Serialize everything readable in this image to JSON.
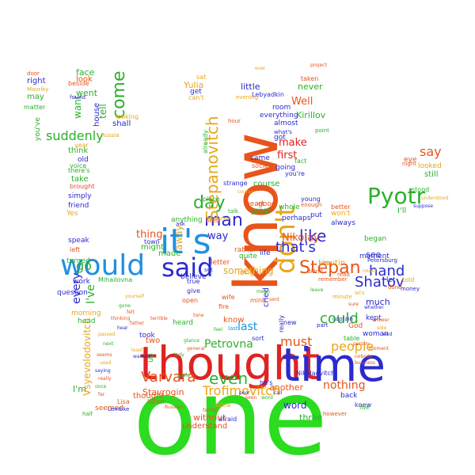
{
  "words": [
    {
      "text": "one",
      "color": "#2bdc1f",
      "orient": "h"
    },
    {
      "text": "know",
      "color": "#e8541a",
      "orient": "v"
    },
    {
      "text": "thought",
      "color": "#e02222",
      "orient": "h"
    },
    {
      "text": "time",
      "color": "#2a2ad0",
      "orient": "h"
    },
    {
      "text": "would",
      "color": "#1f8fe0",
      "orient": "h"
    },
    {
      "text": "it's",
      "color": "#1f8fe0",
      "orient": "h"
    },
    {
      "text": "said",
      "color": "#2a2ad0",
      "orient": "h"
    },
    {
      "text": "don't",
      "color": "#e8a61a",
      "orient": "v"
    },
    {
      "text": "Pyotr",
      "color": "#2bb02b",
      "orient": "h"
    },
    {
      "text": "Stepan",
      "color": "#e8541a",
      "orient": "h"
    },
    {
      "text": "like",
      "color": "#2a2ad0",
      "orient": "h"
    },
    {
      "text": "man",
      "color": "#2a2ad0",
      "orient": "h"
    },
    {
      "text": "day",
      "color": "#2bb02b",
      "orient": "h"
    },
    {
      "text": "Stepanovitch",
      "color": "#e8a61a",
      "orient": "v"
    },
    {
      "text": "come",
      "color": "#2bb02b",
      "orient": "v"
    },
    {
      "text": "suddenly",
      "color": "#2bb02b",
      "orient": "h"
    },
    {
      "text": "even",
      "color": "#2bb02b",
      "orient": "h"
    },
    {
      "text": "Varvara",
      "color": "#e8541a",
      "orient": "h"
    },
    {
      "text": "Petrovna",
      "color": "#2bb02b",
      "orient": "h"
    },
    {
      "text": "Trofimovitch",
      "color": "#e8a61a",
      "orient": "h"
    },
    {
      "text": "Shatov",
      "color": "#2a2ad0",
      "orient": "h"
    },
    {
      "text": "could",
      "color": "#2bb02b",
      "orient": "h"
    },
    {
      "text": "must",
      "color": "#e8541a",
      "orient": "h"
    },
    {
      "text": "people",
      "color": "#e8a61a",
      "orient": "h"
    },
    {
      "text": "nothing",
      "color": "#e8541a",
      "orient": "h"
    },
    {
      "text": "hand",
      "color": "#2a2ad0",
      "orient": "h"
    },
    {
      "text": "that's",
      "color": "#2a2ad0",
      "orient": "h"
    },
    {
      "text": "say",
      "color": "#e8541a",
      "orient": "h"
    },
    {
      "text": "go",
      "color": "#2bb02b",
      "orient": "h"
    },
    {
      "text": "I've",
      "color": "#2bb02b",
      "orient": "v"
    },
    {
      "text": "every",
      "color": "#2a2ad0",
      "orient": "v"
    },
    {
      "text": "last",
      "color": "#1f8fe0",
      "orient": "h"
    },
    {
      "text": "way",
      "color": "#2a2ad0",
      "orient": "h"
    },
    {
      "text": "thing",
      "color": "#e8541a",
      "orient": "h"
    },
    {
      "text": "Nikolay",
      "color": "#e8541a",
      "orient": "h"
    },
    {
      "text": "make",
      "color": "#e02222",
      "orient": "h"
    },
    {
      "text": "first",
      "color": "#e02222",
      "orient": "h"
    },
    {
      "text": "Well",
      "color": "#e8541a",
      "orient": "h"
    },
    {
      "text": "word",
      "color": "#2a2ad0",
      "orient": "h"
    },
    {
      "text": "I'm",
      "color": "#2bb02b",
      "orient": "h"
    },
    {
      "text": "something",
      "color": "#e8a61a",
      "orient": "h"
    },
    {
      "text": "away",
      "color": "#e8a61a",
      "orient": "v"
    },
    {
      "text": "Kirillov",
      "color": "#2bb02b",
      "orient": "h"
    },
    {
      "text": "little",
      "color": "#2a2ad0",
      "orient": "h"
    },
    {
      "text": "never",
      "color": "#2bb02b",
      "orient": "h"
    },
    {
      "text": "see",
      "color": "#2a2ad0",
      "orient": "h"
    },
    {
      "text": "much",
      "color": "#2a2ad0",
      "orient": "h"
    },
    {
      "text": "Yulia",
      "color": "#e8a61a",
      "orient": "h"
    },
    {
      "text": "Liputin",
      "color": "#e8a61a",
      "orient": "h"
    },
    {
      "text": "went",
      "color": "#2bb02b",
      "orient": "h"
    },
    {
      "text": "face",
      "color": "#2bb02b",
      "orient": "h"
    },
    {
      "text": "look",
      "color": "#e8541a",
      "orient": "h"
    },
    {
      "text": "right",
      "color": "#2a2ad0",
      "orient": "h"
    },
    {
      "text": "may",
      "color": "#2bb02b",
      "orient": "h"
    },
    {
      "text": "old",
      "color": "#2a2ad0",
      "orient": "h"
    },
    {
      "text": "take",
      "color": "#2bb02b",
      "orient": "h"
    },
    {
      "text": "know",
      "color": "#e8541a",
      "orient": "h"
    },
    {
      "text": "want",
      "color": "#2bb02b",
      "orient": "v"
    },
    {
      "text": "tell",
      "color": "#2bb02b",
      "orient": "v"
    },
    {
      "text": "shall",
      "color": "#2a2ad0",
      "orient": "h"
    },
    {
      "text": "think",
      "color": "#2bb02b",
      "orient": "h"
    },
    {
      "text": "two",
      "color": "#e8541a",
      "orient": "h"
    },
    {
      "text": "made",
      "color": "#2bb02b",
      "orient": "h"
    },
    {
      "text": "might",
      "color": "#2bb02b",
      "orient": "h"
    },
    {
      "text": "long",
      "color": "#e8a61a",
      "orient": "h"
    },
    {
      "text": "great",
      "color": "#2bb02b",
      "orient": "h"
    },
    {
      "text": "course",
      "color": "#2bb02b",
      "orient": "h"
    },
    {
      "text": "came",
      "color": "#2a2ad0",
      "orient": "h"
    },
    {
      "text": "going",
      "color": "#2a2ad0",
      "orient": "h"
    },
    {
      "text": "room",
      "color": "#2a2ad0",
      "orient": "h"
    },
    {
      "text": "almost",
      "color": "#2a2ad0",
      "orient": "h"
    },
    {
      "text": "everything",
      "color": "#2a2ad0",
      "orient": "h"
    },
    {
      "text": "perhaps",
      "color": "#2a2ad0",
      "orient": "h"
    },
    {
      "text": "always",
      "color": "#2a2ad0",
      "orient": "h"
    },
    {
      "text": "began",
      "color": "#2bb02b",
      "orient": "h"
    },
    {
      "text": "moment",
      "color": "#2a2ad0",
      "orient": "h"
    },
    {
      "text": "still",
      "color": "#2bb02b",
      "orient": "h"
    },
    {
      "text": "eye",
      "color": "#e8541a",
      "orient": "h"
    },
    {
      "text": "looked",
      "color": "#e8a61a",
      "orient": "h"
    },
    {
      "text": "I'll",
      "color": "#2bb02b",
      "orient": "h"
    },
    {
      "text": "won't",
      "color": "#e8a61a",
      "orient": "h"
    },
    {
      "text": "let",
      "color": "#2a2ad0",
      "orient": "h"
    },
    {
      "text": "kept",
      "color": "#2a2ad0",
      "orient": "h"
    },
    {
      "text": "God",
      "color": "#e8541a",
      "orient": "h"
    },
    {
      "text": "woman",
      "color": "#2a2ad0",
      "orient": "h"
    },
    {
      "text": "three",
      "color": "#2bb02b",
      "orient": "h"
    },
    {
      "text": "another",
      "color": "#e8541a",
      "orient": "h"
    },
    {
      "text": "back",
      "color": "#2a2ad0",
      "orient": "h"
    },
    {
      "text": "without",
      "color": "#e8541a",
      "orient": "h"
    },
    {
      "text": "understand",
      "color": "#e8541a",
      "orient": "h"
    },
    {
      "text": "idea",
      "color": "#e8a61a",
      "orient": "h"
    },
    {
      "text": "Stavrogin",
      "color": "#e8541a",
      "orient": "h"
    },
    {
      "text": "thought",
      "color": "#e8541a",
      "orient": "h"
    },
    {
      "text": "heard",
      "color": "#2bb02b",
      "orient": "h"
    },
    {
      "text": "took",
      "color": "#2a2ad0",
      "orient": "h"
    },
    {
      "text": "us",
      "color": "#2bb02b",
      "orient": "v"
    },
    {
      "text": "Vsyevolodovitch",
      "color": "#e8a61a",
      "orient": "v"
    },
    {
      "text": "head",
      "color": "#2bb02b",
      "orient": "h"
    },
    {
      "text": "morning",
      "color": "#e8a61a",
      "orient": "h"
    },
    {
      "text": "work",
      "color": "#2a2ad0",
      "orient": "h"
    },
    {
      "text": "question",
      "color": "#2a2ad0",
      "orient": "h"
    },
    {
      "text": "turned",
      "color": "#2bb02b",
      "orient": "h"
    },
    {
      "text": "speak",
      "color": "#2a2ad0",
      "orient": "h"
    },
    {
      "text": "simply",
      "color": "#2a2ad0",
      "orient": "h"
    },
    {
      "text": "friend",
      "color": "#2a2ad0",
      "orient": "h"
    },
    {
      "text": "Yes",
      "color": "#e8a61a",
      "orient": "h"
    },
    {
      "text": "you've",
      "color": "#2bb02b",
      "orient": "v"
    },
    {
      "text": "matter",
      "color": "#2bb02b",
      "orient": "h"
    },
    {
      "text": "house",
      "color": "#2a2ad0",
      "orient": "v"
    },
    {
      "text": "seemed",
      "color": "#e8541a",
      "orient": "h"
    },
    {
      "text": "Lisa",
      "color": "#e8541a",
      "orient": "h"
    },
    {
      "text": "Lembke",
      "color": "#2a2ad0",
      "orient": "h"
    },
    {
      "text": "fire",
      "color": "#e8541a",
      "orient": "h"
    },
    {
      "text": "wife",
      "color": "#e8541a",
      "orient": "h"
    },
    {
      "text": "cried",
      "color": "#2a2ad0",
      "orient": "v"
    },
    {
      "text": "mind",
      "color": "#e8541a",
      "orient": "h"
    },
    {
      "text": "believe",
      "color": "#2a2ad0",
      "orient": "h"
    },
    {
      "text": "letter",
      "color": "#e8541a",
      "orient": "h"
    },
    {
      "text": "rather",
      "color": "#e8541a",
      "orient": "h"
    },
    {
      "text": "quite",
      "color": "#2bb02b",
      "orient": "h"
    },
    {
      "text": "life",
      "color": "#2a2ad0",
      "orient": "h"
    },
    {
      "text": "heart",
      "color": "#e8541a",
      "orient": "h"
    },
    {
      "text": "good",
      "color": "#e8541a",
      "orient": "h"
    },
    {
      "text": "whole",
      "color": "#2bb02b",
      "orient": "h"
    },
    {
      "text": "young",
      "color": "#2a2ad0",
      "orient": "h"
    },
    {
      "text": "put",
      "color": "#2a2ad0",
      "orient": "h"
    },
    {
      "text": "place",
      "color": "#2bb02b",
      "orient": "h"
    },
    {
      "text": "anything",
      "color": "#2bb02b",
      "orient": "h"
    },
    {
      "text": "town",
      "color": "#2a2ad0",
      "orient": "h"
    },
    {
      "text": "strange",
      "color": "#2a2ad0",
      "orient": "h"
    },
    {
      "text": "already",
      "color": "#2bb02b",
      "orient": "v"
    },
    {
      "text": "got",
      "color": "#2a2ad0",
      "orient": "h"
    },
    {
      "text": "told",
      "color": "#e8a61a",
      "orient": "h"
    },
    {
      "text": "sort",
      "color": "#2a2ad0",
      "orient": "h"
    },
    {
      "text": "new",
      "color": "#2a2ad0",
      "orient": "h"
    },
    {
      "text": "really",
      "color": "#2a2ad0",
      "orient": "v"
    },
    {
      "text": "Nikolaevitch",
      "color": "#2a2ad0",
      "orient": "h"
    },
    {
      "text": "he's",
      "color": "#2a2ad0",
      "orient": "h"
    },
    {
      "text": "knew",
      "color": "#2a2ad0",
      "orient": "h"
    },
    {
      "text": "get",
      "color": "#2a2ad0",
      "orient": "h"
    },
    {
      "text": "sat",
      "color": "#e8a61a",
      "orient": "h"
    },
    {
      "text": "can't",
      "color": "#e8a61a",
      "orient": "h"
    },
    {
      "text": "Lebyadkin",
      "color": "#2a2ad0",
      "orient": "h"
    },
    {
      "text": "taken",
      "color": "#e8541a",
      "orient": "h"
    },
    {
      "text": "there's",
      "color": "#2bb02b",
      "orient": "h"
    },
    {
      "text": "brought",
      "color": "#e8541a",
      "orient": "h"
    },
    {
      "text": "voice",
      "color": "#2bb02b",
      "orient": "h"
    },
    {
      "text": "left",
      "color": "#e8541a",
      "orient": "h"
    },
    {
      "text": "beside",
      "color": "#e8541a",
      "orient": "h"
    },
    {
      "text": "found",
      "color": "#2a2ad0",
      "orient": "h"
    },
    {
      "text": "door",
      "color": "#e8541a",
      "orient": "h"
    },
    {
      "text": "Mavriky",
      "color": "#e8a61a",
      "orient": "h"
    },
    {
      "text": "looking",
      "color": "#e8a61a",
      "orient": "h"
    },
    {
      "text": "year",
      "color": "#e8a61a",
      "orient": "h"
    },
    {
      "text": "Russia",
      "color": "#e8a61a",
      "orient": "h"
    },
    {
      "text": "Mihailovna",
      "color": "#2bb02b",
      "orient": "h"
    },
    {
      "text": "fact",
      "color": "#2bb02b",
      "orient": "h"
    },
    {
      "text": "society",
      "color": "#e8541a",
      "orient": "h"
    },
    {
      "text": "you're",
      "color": "#2a2ad0",
      "orient": "h"
    },
    {
      "text": "better",
      "color": "#e8541a",
      "orient": "h"
    },
    {
      "text": "enough",
      "color": "#e8541a",
      "orient": "h"
    },
    {
      "text": "remember",
      "color": "#e8541a",
      "orient": "h"
    },
    {
      "text": "didn't",
      "color": "#e8541a",
      "orient": "h"
    },
    {
      "text": "read",
      "color": "#e8541a",
      "orient": "h"
    },
    {
      "text": "done",
      "color": "#e8541a",
      "orient": "h"
    },
    {
      "text": "money",
      "color": "#2a2ad0",
      "orient": "h"
    },
    {
      "text": "night",
      "color": "#e8541a",
      "orient": "h"
    },
    {
      "text": "stood",
      "color": "#2bb02b",
      "orient": "h"
    },
    {
      "text": "Petersburg",
      "color": "#2a2ad0",
      "orient": "h"
    },
    {
      "text": "minute",
      "color": "#e8a61a",
      "orient": "h"
    },
    {
      "text": "captain",
      "color": "#2a2ad0",
      "orient": "h"
    },
    {
      "text": "however",
      "color": "#e8541a",
      "orient": "h"
    },
    {
      "text": "five",
      "color": "#2bb02b",
      "orient": "h"
    },
    {
      "text": "table",
      "color": "#2bb02b",
      "orient": "h"
    },
    {
      "text": "part",
      "color": "#2a2ad0",
      "orient": "h"
    },
    {
      "text": "afraid",
      "color": "#2a2ad0",
      "orient": "h"
    },
    {
      "text": "listen",
      "color": "#e8541a",
      "orient": "h"
    },
    {
      "text": "half",
      "color": "#2bb02b",
      "orient": "h"
    },
    {
      "text": "open",
      "color": "#e8541a",
      "orient": "h"
    },
    {
      "text": "true",
      "color": "#2a2ad0",
      "orient": "h"
    },
    {
      "text": "give",
      "color": "#2a2ad0",
      "orient": "h"
    },
    {
      "text": "hour",
      "color": "#e8541a",
      "orient": "h"
    },
    {
      "text": "evening",
      "color": "#e8a61a",
      "orient": "h"
    },
    {
      "text": "point",
      "color": "#2bb02b",
      "orient": "h"
    },
    {
      "text": "need",
      "color": "#e8541a",
      "orient": "h"
    },
    {
      "text": "ask",
      "color": "#2a2ad0",
      "orient": "h"
    },
    {
      "text": "set",
      "color": "#2a2ad0",
      "orient": "h"
    },
    {
      "text": "talk",
      "color": "#2bb02b",
      "orient": "h"
    },
    {
      "text": "last",
      "color": "#1f8fe0",
      "orient": "h"
    },
    {
      "text": "what's",
      "color": "#2a2ad0",
      "orient": "h"
    },
    {
      "text": "since",
      "color": "#e8541a",
      "orient": "h"
    },
    {
      "text": "Russian",
      "color": "#e8541a",
      "orient": "h"
    },
    {
      "text": "course",
      "color": "#e8a61a",
      "orient": "h"
    },
    {
      "text": "terrible",
      "color": "#e8541a",
      "orient": "h"
    },
    {
      "text": "tone",
      "color": "#e8541a",
      "orient": "h"
    },
    {
      "text": "feel",
      "color": "#2bb02b",
      "orient": "h"
    },
    {
      "text": "family",
      "color": "#e8541a",
      "orient": "h"
    },
    {
      "text": "smile",
      "color": "#2bb02b",
      "orient": "h"
    },
    {
      "text": "happened",
      "color": "#e8a61a",
      "orient": "h"
    },
    {
      "text": "sight",
      "color": "#e8541a",
      "orient": "h"
    },
    {
      "text": "round",
      "color": "#e8a61a",
      "orient": "h"
    },
    {
      "text": "leave",
      "color": "#2bb02b",
      "orient": "h"
    },
    {
      "text": "reason",
      "color": "#e8541a",
      "orient": "h"
    },
    {
      "text": "poor",
      "color": "#2a2ad0",
      "orient": "h"
    },
    {
      "text": "seen",
      "color": "#e8541a",
      "orient": "h"
    },
    {
      "text": "mean",
      "color": "#2bb02b",
      "orient": "h"
    },
    {
      "text": "sent",
      "color": "#e8541a",
      "orient": "h"
    },
    {
      "text": "word",
      "color": "#2bb02b",
      "orient": "h"
    },
    {
      "text": "call",
      "color": "#2a2ad0",
      "orient": "h"
    },
    {
      "text": "let's",
      "color": "#e8a61a",
      "orient": "h"
    },
    {
      "text": "sure",
      "color": "#e8541a",
      "orient": "h"
    },
    {
      "text": "whether",
      "color": "#2a2ad0",
      "orient": "h"
    },
    {
      "text": "answer",
      "color": "#e8541a",
      "orient": "h"
    },
    {
      "text": "side",
      "color": "#e8a61a",
      "orient": "h"
    },
    {
      "text": "end",
      "color": "#2a2ad0",
      "orient": "h"
    },
    {
      "text": "person",
      "color": "#e8541a",
      "orient": "h"
    },
    {
      "text": "moment",
      "color": "#e8541a",
      "orient": "h"
    },
    {
      "text": "nobody",
      "color": "#e8541a",
      "orient": "h"
    },
    {
      "text": "business",
      "color": "#e8541a",
      "orient": "h"
    },
    {
      "text": "glance",
      "color": "#2bb02b",
      "orient": "h"
    },
    {
      "text": "general",
      "color": "#e8541a",
      "orient": "h"
    },
    {
      "text": "lady",
      "color": "#2bb02b",
      "orient": "h"
    },
    {
      "text": "least",
      "color": "#e8a61a",
      "orient": "h"
    },
    {
      "text": "wanted",
      "color": "#2a2ad0",
      "orient": "h"
    },
    {
      "text": "father",
      "color": "#e8541a",
      "orient": "h"
    },
    {
      "text": "yourself",
      "color": "#e8a61a",
      "orient": "h"
    },
    {
      "text": "gone",
      "color": "#2bb02b",
      "orient": "h"
    },
    {
      "text": "felt",
      "color": "#e8541a",
      "orient": "h"
    },
    {
      "text": "thinking",
      "color": "#e8541a",
      "orient": "h"
    },
    {
      "text": "hear",
      "color": "#2a2ad0",
      "orient": "h"
    },
    {
      "text": "passed",
      "color": "#e8a61a",
      "orient": "h"
    },
    {
      "text": "next",
      "color": "#2bb02b",
      "orient": "h"
    },
    {
      "text": "seems",
      "color": "#e8541a",
      "orient": "h"
    },
    {
      "text": "used",
      "color": "#e8a61a",
      "orient": "h"
    },
    {
      "text": "saying",
      "color": "#2a2ad0",
      "orient": "h"
    },
    {
      "text": "really",
      "color": "#e8541a",
      "orient": "h"
    },
    {
      "text": "once",
      "color": "#2bb02b",
      "orient": "h"
    },
    {
      "text": "far",
      "color": "#e8541a",
      "orient": "h"
    },
    {
      "text": "understood",
      "color": "#e8a61a",
      "orient": "h"
    },
    {
      "text": "suppose",
      "color": "#2a2ad0",
      "orient": "h"
    },
    {
      "text": "project",
      "color": "#e8541a",
      "orient": "h"
    },
    {
      "text": "ever",
      "color": "#e8a61a",
      "orient": "h"
    }
  ]
}
